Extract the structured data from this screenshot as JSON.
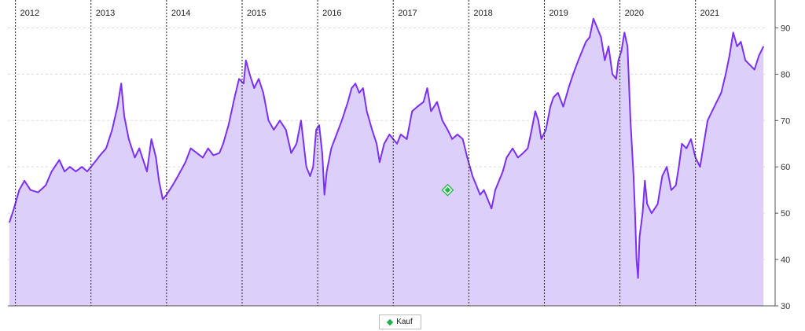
{
  "chart_data": {
    "type": "area",
    "title": "",
    "xlabel": "",
    "ylabel": "",
    "x_range": [
      2011.9,
      2021.95
    ],
    "ylim": [
      30,
      95
    ],
    "y_ticks": [
      30,
      40,
      50,
      60,
      70,
      80,
      90
    ],
    "year_labels": [
      "2012",
      "2013",
      "2014",
      "2015",
      "2016",
      "2017",
      "2018",
      "2019",
      "2020",
      "2021"
    ],
    "year_boundaries": [
      2012,
      2013,
      2014,
      2015,
      2016,
      2017,
      2018,
      2019,
      2020,
      2021
    ],
    "grid": true,
    "line_color": "#7b2ff7",
    "fill_color": "#dcd0fb",
    "series": [
      {
        "values_xy": [
          [
            2011.92,
            48
          ],
          [
            2011.98,
            51
          ],
          [
            2012.05,
            55
          ],
          [
            2012.12,
            57
          ],
          [
            2012.2,
            55
          ],
          [
            2012.3,
            54.5
          ],
          [
            2012.4,
            56
          ],
          [
            2012.48,
            59
          ],
          [
            2012.58,
            61.5
          ],
          [
            2012.65,
            59
          ],
          [
            2012.72,
            60
          ],
          [
            2012.8,
            59
          ],
          [
            2012.88,
            60
          ],
          [
            2012.95,
            59
          ],
          [
            2013.0,
            60
          ],
          [
            2013.05,
            61
          ],
          [
            2013.12,
            62.5
          ],
          [
            2013.2,
            64
          ],
          [
            2013.28,
            68
          ],
          [
            2013.35,
            73
          ],
          [
            2013.4,
            78
          ],
          [
            2013.44,
            71
          ],
          [
            2013.5,
            66
          ],
          [
            2013.58,
            62
          ],
          [
            2013.64,
            64
          ],
          [
            2013.7,
            61
          ],
          [
            2013.74,
            59
          ],
          [
            2013.8,
            66
          ],
          [
            2013.86,
            62
          ],
          [
            2013.9,
            57
          ],
          [
            2013.95,
            53
          ],
          [
            2014.0,
            54
          ],
          [
            2014.08,
            56
          ],
          [
            2014.15,
            58
          ],
          [
            2014.25,
            61
          ],
          [
            2014.32,
            64
          ],
          [
            2014.4,
            63
          ],
          [
            2014.48,
            62
          ],
          [
            2014.55,
            64
          ],
          [
            2014.62,
            62.5
          ],
          [
            2014.7,
            63
          ],
          [
            2014.75,
            65
          ],
          [
            2014.82,
            69
          ],
          [
            2014.9,
            75
          ],
          [
            2014.96,
            79
          ],
          [
            2015.02,
            78
          ],
          [
            2015.05,
            83
          ],
          [
            2015.1,
            80
          ],
          [
            2015.16,
            77
          ],
          [
            2015.22,
            79
          ],
          [
            2015.28,
            76
          ],
          [
            2015.35,
            70
          ],
          [
            2015.42,
            68
          ],
          [
            2015.5,
            70
          ],
          [
            2015.58,
            68
          ],
          [
            2015.65,
            63
          ],
          [
            2015.72,
            65
          ],
          [
            2015.78,
            70
          ],
          [
            2015.85,
            60
          ],
          [
            2015.9,
            58
          ],
          [
            2015.94,
            60
          ],
          [
            2015.98,
            68
          ],
          [
            2016.02,
            69
          ],
          [
            2016.06,
            63
          ],
          [
            2016.09,
            54
          ],
          [
            2016.12,
            59
          ],
          [
            2016.18,
            64
          ],
          [
            2016.25,
            67
          ],
          [
            2016.32,
            70
          ],
          [
            2016.4,
            74
          ],
          [
            2016.45,
            77
          ],
          [
            2016.5,
            78
          ],
          [
            2016.55,
            76
          ],
          [
            2016.6,
            77
          ],
          [
            2016.65,
            72
          ],
          [
            2016.72,
            68
          ],
          [
            2016.78,
            65
          ],
          [
            2016.82,
            61
          ],
          [
            2016.88,
            65
          ],
          [
            2016.95,
            67
          ],
          [
            2017.0,
            66
          ],
          [
            2017.05,
            65
          ],
          [
            2017.1,
            67
          ],
          [
            2017.18,
            66
          ],
          [
            2017.25,
            72
          ],
          [
            2017.32,
            73
          ],
          [
            2017.4,
            74
          ],
          [
            2017.45,
            77
          ],
          [
            2017.5,
            72
          ],
          [
            2017.58,
            74
          ],
          [
            2017.65,
            70
          ],
          [
            2017.72,
            68
          ],
          [
            2017.78,
            66
          ],
          [
            2017.85,
            67
          ],
          [
            2017.92,
            66
          ],
          [
            2017.98,
            62
          ],
          [
            2018.05,
            58
          ],
          [
            2018.1,
            56
          ],
          [
            2018.15,
            54
          ],
          [
            2018.2,
            55
          ],
          [
            2018.25,
            53
          ],
          [
            2018.3,
            51
          ],
          [
            2018.35,
            55
          ],
          [
            2018.4,
            57
          ],
          [
            2018.45,
            59
          ],
          [
            2018.5,
            62
          ],
          [
            2018.58,
            64
          ],
          [
            2018.65,
            62
          ],
          [
            2018.72,
            63
          ],
          [
            2018.78,
            64
          ],
          [
            2018.82,
            67
          ],
          [
            2018.88,
            72
          ],
          [
            2018.92,
            70
          ],
          [
            2018.96,
            66
          ],
          [
            2019.02,
            68
          ],
          [
            2019.08,
            73
          ],
          [
            2019.12,
            75
          ],
          [
            2019.18,
            76
          ],
          [
            2019.25,
            73
          ],
          [
            2019.32,
            77
          ],
          [
            2019.38,
            80
          ],
          [
            2019.45,
            83
          ],
          [
            2019.5,
            85
          ],
          [
            2019.55,
            87
          ],
          [
            2019.6,
            88
          ],
          [
            2019.65,
            92
          ],
          [
            2019.7,
            90
          ],
          [
            2019.75,
            88
          ],
          [
            2019.8,
            83
          ],
          [
            2019.85,
            86
          ],
          [
            2019.9,
            80
          ],
          [
            2019.95,
            79
          ],
          [
            2019.98,
            83
          ],
          [
            2020.02,
            85
          ],
          [
            2020.06,
            89
          ],
          [
            2020.1,
            86
          ],
          [
            2020.14,
            70
          ],
          [
            2020.18,
            58
          ],
          [
            2020.2,
            50
          ],
          [
            2020.22,
            40
          ],
          [
            2020.24,
            36
          ],
          [
            2020.26,
            45
          ],
          [
            2020.3,
            50
          ],
          [
            2020.33,
            57
          ],
          [
            2020.36,
            52
          ],
          [
            2020.42,
            50
          ],
          [
            2020.5,
            52
          ],
          [
            2020.56,
            58
          ],
          [
            2020.62,
            60
          ],
          [
            2020.68,
            55
          ],
          [
            2020.74,
            56
          ],
          [
            2020.78,
            60
          ],
          [
            2020.82,
            65
          ],
          [
            2020.88,
            64
          ],
          [
            2020.94,
            66
          ],
          [
            2021.0,
            62
          ],
          [
            2021.06,
            60
          ],
          [
            2021.1,
            64
          ],
          [
            2021.16,
            70
          ],
          [
            2021.22,
            72
          ],
          [
            2021.28,
            74
          ],
          [
            2021.34,
            76
          ],
          [
            2021.4,
            80
          ],
          [
            2021.45,
            84
          ],
          [
            2021.5,
            89
          ],
          [
            2021.55,
            86
          ],
          [
            2021.6,
            87
          ],
          [
            2021.66,
            83
          ],
          [
            2021.72,
            82
          ],
          [
            2021.78,
            81
          ],
          [
            2021.84,
            84
          ],
          [
            2021.9,
            86
          ]
        ]
      }
    ],
    "markers": [
      {
        "name": "Kauf",
        "x": 2017.72,
        "y": 55,
        "color": "#22b14c"
      }
    ]
  },
  "legend": {
    "kauf_label": "Kauf"
  }
}
